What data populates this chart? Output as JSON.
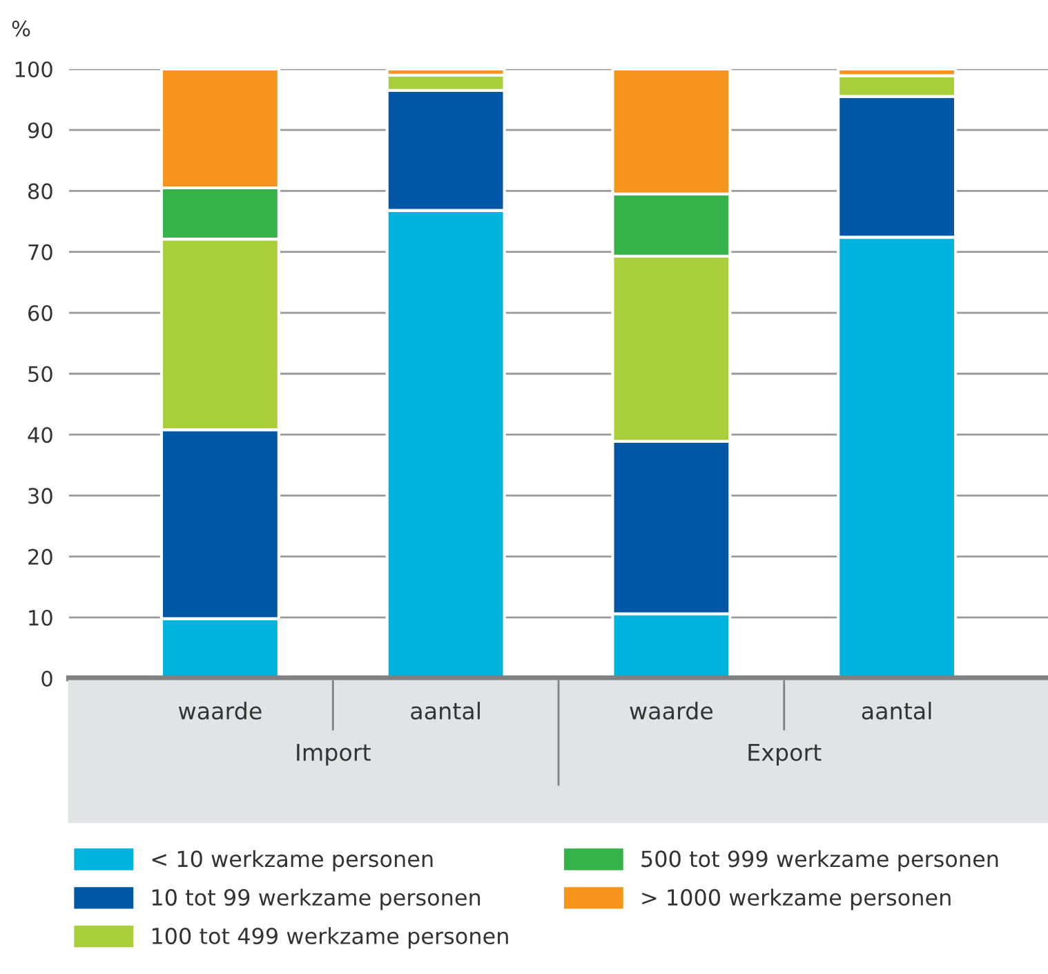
{
  "chart_data": {
    "type": "bar",
    "stacked": true,
    "ylabel": "%",
    "categories": [
      "waarde",
      "aantal",
      "waarde",
      "aantal"
    ],
    "series": [
      {
        "name": "< 10 werkzame personen",
        "color": "#00b3dc",
        "values": [
          9.8,
          76.8,
          10.6,
          72.4
        ]
      },
      {
        "name": "10 tot 99 werkzame personen",
        "color": "#0057a6",
        "values": [
          31.0,
          19.7,
          28.3,
          23.1
        ]
      },
      {
        "name": "100 tot 499 werkzame personen",
        "color": "#a8cf3a",
        "values": [
          31.3,
          2.5,
          30.4,
          3.4
        ]
      },
      {
        "name": "500 tot 999 werkzame personen",
        "color": "#36b24a",
        "values": [
          8.4,
          0,
          10.2,
          0
        ]
      },
      {
        "name": "> 1000 werkzame personen",
        "color": "#f6941e",
        "values": [
          19.5,
          1.0,
          20.5,
          1.1
        ]
      }
    ],
    "annotations": [
      "Import",
      "Export"
    ],
    "ylim": [
      0,
      100
    ],
    "yticks": [
      0,
      10,
      20,
      30,
      40,
      50,
      60,
      70,
      80,
      90,
      100
    ],
    "grid": "y",
    "legend": "bottom"
  }
}
